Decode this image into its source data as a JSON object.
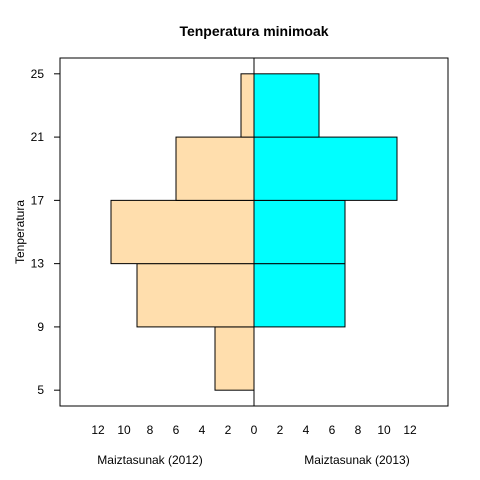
{
  "chart_data": {
    "type": "bar",
    "orientation": "horizontal",
    "layout": "back-to-back histogram",
    "title": "Tenperatura minimoak",
    "ylabel": "Tenperatura",
    "y_bins": [
      [
        5,
        9
      ],
      [
        9,
        13
      ],
      [
        13,
        17
      ],
      [
        17,
        21
      ],
      [
        21,
        25
      ]
    ],
    "y_ticks": [
      5,
      9,
      13,
      17,
      21,
      25
    ],
    "x_tick_labels_left": [
      "12",
      "10",
      "8",
      "6",
      "4",
      "2"
    ],
    "x_tick_labels_right": [
      "0",
      "2",
      "4",
      "6",
      "8",
      "10",
      "12"
    ],
    "xlim": [
      -15,
      15
    ],
    "ylim": [
      4,
      26
    ],
    "grid": false,
    "series": [
      {
        "name": "Maiztasunak (2012)",
        "side": "left",
        "color": "#FFDEAD",
        "values": [
          3,
          9,
          11,
          6,
          1
        ]
      },
      {
        "name": "Maiztasunak (2013)",
        "side": "right",
        "color": "#00FFFF",
        "values": [
          0,
          7,
          7,
          11,
          5
        ]
      }
    ]
  }
}
